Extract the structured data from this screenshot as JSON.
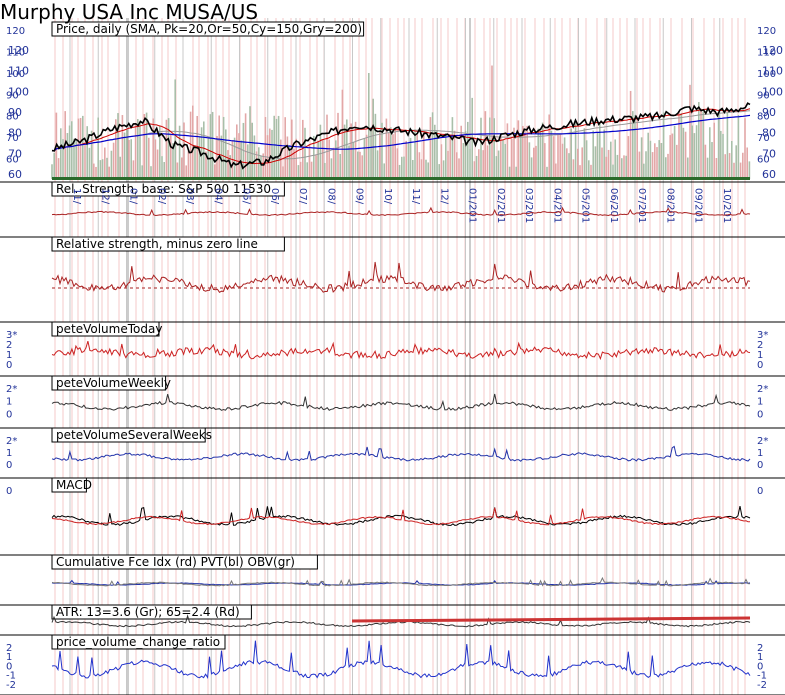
{
  "title": "Murphy USA Inc MUSA/US",
  "panels": [
    {
      "id": "price",
      "label": "Price, daily (SMA, Pk=20,Or=50,Cy=150,Gry=200)",
      "ticks": [
        "120",
        "110",
        "100",
        "90",
        "80",
        "70",
        "60"
      ]
    },
    {
      "id": "relstrength",
      "label": "Rel. Strength, base: S&P 500 11530"
    },
    {
      "id": "relzero",
      "label": "Relative strength, minus zero line"
    },
    {
      "id": "volToday",
      "label": "peteVolumeToday",
      "ticks": [
        "3*",
        "2",
        "1",
        "0"
      ]
    },
    {
      "id": "volWeekly",
      "label": "peteVolumeWeekly",
      "ticks": [
        "2*",
        "1",
        "0"
      ]
    },
    {
      "id": "volSeveral",
      "label": "peteVolumeSeveralWeeks",
      "ticks": [
        "2*",
        "1",
        "0"
      ]
    },
    {
      "id": "macd",
      "label": "MACD",
      "ticks": [
        "0"
      ]
    },
    {
      "id": "cumul",
      "label": "Cumulative Fce Idx (rd) PVT(bl) OBV(gr)"
    },
    {
      "id": "atr",
      "label": "ATR: 13=3.6 (Gr); 65=2.4 (Rd)"
    },
    {
      "id": "pvcr",
      "label": "price_volume_change_ratio",
      "ticks": [
        "2",
        "1",
        "0",
        "-1",
        "-2"
      ]
    }
  ],
  "months": [
    "11/",
    "12/",
    "01/",
    "02/",
    "03/",
    "04/",
    "05/",
    "06/",
    "07/",
    "08/",
    "09/",
    "10/",
    "11/",
    "12/",
    "01/201",
    "02/201",
    "03/201",
    "04/201",
    "05/201",
    "06/201",
    "07/201",
    "08/201",
    "09/201",
    "10/201"
  ],
  "chart_data": {
    "type": "line",
    "title": "Murphy USA Inc MUSA/US",
    "x": [
      "11/",
      "12/",
      "01/",
      "02/",
      "03/",
      "04/",
      "05/",
      "06/",
      "07/",
      "08/",
      "09/",
      "10/",
      "11/",
      "12/",
      "01/201",
      "02/201",
      "03/201",
      "04/201",
      "05/201",
      "06/201",
      "07/201",
      "08/201",
      "09/201",
      "10/201"
    ],
    "ylim": [
      60,
      120
    ],
    "series": [
      {
        "values": [
          72,
          76,
          82,
          86,
          74,
          70,
          64,
          66,
          74,
          79,
          84,
          82,
          80,
          78,
          75,
          79,
          82,
          84,
          86,
          87,
          88,
          92,
          90,
          93
        ]
      }
    ]
  },
  "colors": {
    "price": "#000000",
    "sma20": "#cc0000",
    "sma50": "#0000cc",
    "sma200": "#999999",
    "volume": "#e8a0a0",
    "grid": "#888888"
  }
}
